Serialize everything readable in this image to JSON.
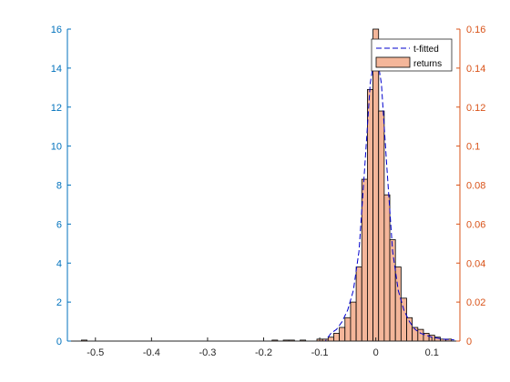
{
  "chart_data": {
    "type": "bar",
    "x_ticks": [
      "-0.5",
      "-0.4",
      "-0.3",
      "-0.2",
      "-0.1",
      "0",
      "0.1"
    ],
    "x_tick_values": [
      -0.5,
      -0.4,
      -0.3,
      -0.2,
      -0.1,
      0,
      0.1
    ],
    "xlim": [
      -0.55,
      0.15
    ],
    "ylim_left": [
      0,
      16
    ],
    "ylim_right": [
      0,
      0.16
    ],
    "y_ticks_left": [
      "0",
      "2",
      "4",
      "6",
      "8",
      "10",
      "12",
      "14",
      "16"
    ],
    "y_ticks_right": [
      "0",
      "0.02",
      "0.04",
      "0.06",
      "0.08",
      "0.1",
      "0.12",
      "0.14",
      "0.16"
    ],
    "bin_width": 0.01,
    "bins": [
      {
        "x": -0.52,
        "y": 0.0005
      },
      {
        "x": -0.18,
        "y": 0.0005
      },
      {
        "x": -0.16,
        "y": 0.0005
      },
      {
        "x": -0.15,
        "y": 0.0005
      },
      {
        "x": -0.13,
        "y": 0.0005
      },
      {
        "x": -0.1,
        "y": 0.001
      },
      {
        "x": -0.09,
        "y": 0.001
      },
      {
        "x": -0.08,
        "y": 0.002
      },
      {
        "x": -0.07,
        "y": 0.004
      },
      {
        "x": -0.06,
        "y": 0.007
      },
      {
        "x": -0.05,
        "y": 0.012
      },
      {
        "x": -0.04,
        "y": 0.02
      },
      {
        "x": -0.03,
        "y": 0.038
      },
      {
        "x": -0.02,
        "y": 0.083
      },
      {
        "x": -0.01,
        "y": 0.129
      },
      {
        "x": 0.0,
        "y": 0.137
      },
      {
        "x": 0.0,
        "y": 0.16
      },
      {
        "x": 0.01,
        "y": 0.118
      },
      {
        "x": 0.02,
        "y": 0.075
      },
      {
        "x": 0.03,
        "y": 0.052
      },
      {
        "x": 0.04,
        "y": 0.038
      },
      {
        "x": 0.05,
        "y": 0.022
      },
      {
        "x": 0.06,
        "y": 0.012
      },
      {
        "x": 0.07,
        "y": 0.007
      },
      {
        "x": 0.08,
        "y": 0.006
      },
      {
        "x": 0.09,
        "y": 0.004
      },
      {
        "x": 0.1,
        "y": 0.003
      },
      {
        "x": 0.11,
        "y": 0.002
      },
      {
        "x": 0.12,
        "y": 0.001
      },
      {
        "x": 0.13,
        "y": 0.001
      }
    ],
    "fit_curve": {
      "x": [
        -0.55,
        -0.1,
        -0.09,
        -0.08,
        -0.07,
        -0.06,
        -0.05,
        -0.04,
        -0.03,
        -0.02,
        -0.01,
        0.0,
        0.01,
        0.02,
        0.03,
        0.04,
        0.05,
        0.06,
        0.07,
        0.08,
        0.09,
        0.1,
        0.11,
        0.12,
        0.13,
        0.14
      ],
      "y": [
        0.0,
        0.002,
        0.003,
        0.4,
        0.6,
        1.0,
        1.6,
        2.6,
        4.6,
        8.8,
        13.2,
        15.0,
        13.2,
        8.8,
        4.6,
        2.6,
        1.6,
        1.0,
        0.6,
        0.4,
        0.3,
        0.2,
        0.15,
        0.1,
        0.08,
        0.06
      ]
    },
    "series": [
      {
        "name": "t-fitted",
        "color": "#0000CD",
        "style": "dashed",
        "axis": "left"
      },
      {
        "name": "returns",
        "color": "#F4B69A",
        "edge": "#000000",
        "axis": "right"
      }
    ],
    "colors": {
      "left_axis": "#0072BD",
      "right_axis": "#D95319",
      "x_axis": "#262626"
    },
    "legend_position": "top-right",
    "grid": false
  }
}
